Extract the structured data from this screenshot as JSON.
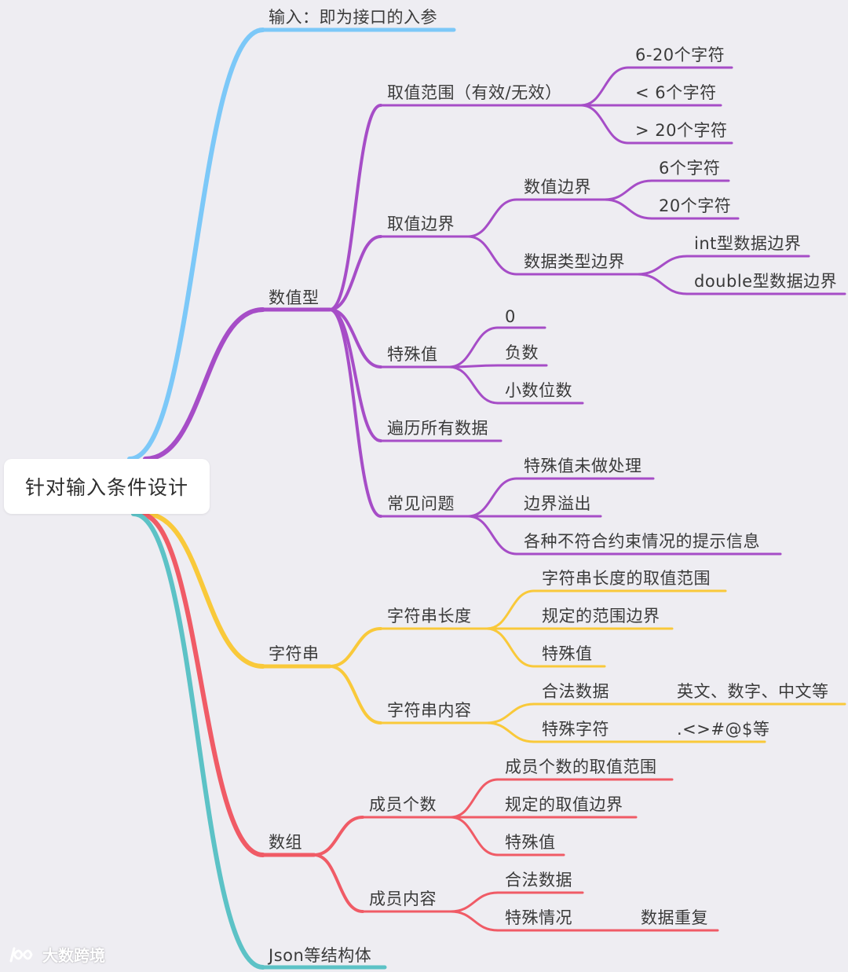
{
  "root": "针对输入条件设计",
  "colors": {
    "input": "#7cc8f8",
    "numeric": "#a64dc7",
    "string": "#f9c93a",
    "array": "#f05b66",
    "json": "#5cc2c6",
    "background": "#eeedf2"
  },
  "branches": {
    "input": "输入：即为接口的入参",
    "numeric": {
      "label": "数值型",
      "range": {
        "label": "取值范围（有效/无效）",
        "items": [
          "6-20个字符",
          "< 6个字符",
          "> 20个字符"
        ]
      },
      "boundary": {
        "label": "取值边界",
        "value_boundary": {
          "label": "数值边界",
          "items": [
            "6个字符",
            "20个字符"
          ]
        },
        "type_boundary": {
          "label": "数据类型边界",
          "items": [
            "int型数据边界",
            "double型数据边界"
          ]
        }
      },
      "special": {
        "label": "特殊值",
        "items": [
          "0",
          "负数",
          "小数位数"
        ]
      },
      "traverse": "遍历所有数据",
      "issues": {
        "label": "常见问题",
        "items": [
          "特殊值未做处理",
          "边界溢出",
          "各种不符合约束情况的提示信息"
        ]
      }
    },
    "string": {
      "label": "字符串",
      "length": {
        "label": "字符串长度",
        "items": [
          "字符串长度的取值范围",
          "规定的范围边界",
          "特殊值"
        ]
      },
      "content": {
        "label": "字符串内容",
        "legal": {
          "label": "合法数据",
          "detail": "英文、数字、中文等"
        },
        "special": {
          "label": "特殊字符",
          "detail": ".<>#@$等"
        }
      }
    },
    "array": {
      "label": "数组",
      "count": {
        "label": "成员个数",
        "items": [
          "成员个数的取值范围",
          "规定的取值边界",
          "特殊值"
        ]
      },
      "content": {
        "label": "成员内容",
        "legal": "合法数据",
        "special": {
          "label": "特殊情况",
          "detail": "数据重复"
        }
      }
    },
    "json": "Json等结构体"
  },
  "watermark": "大数跨境"
}
